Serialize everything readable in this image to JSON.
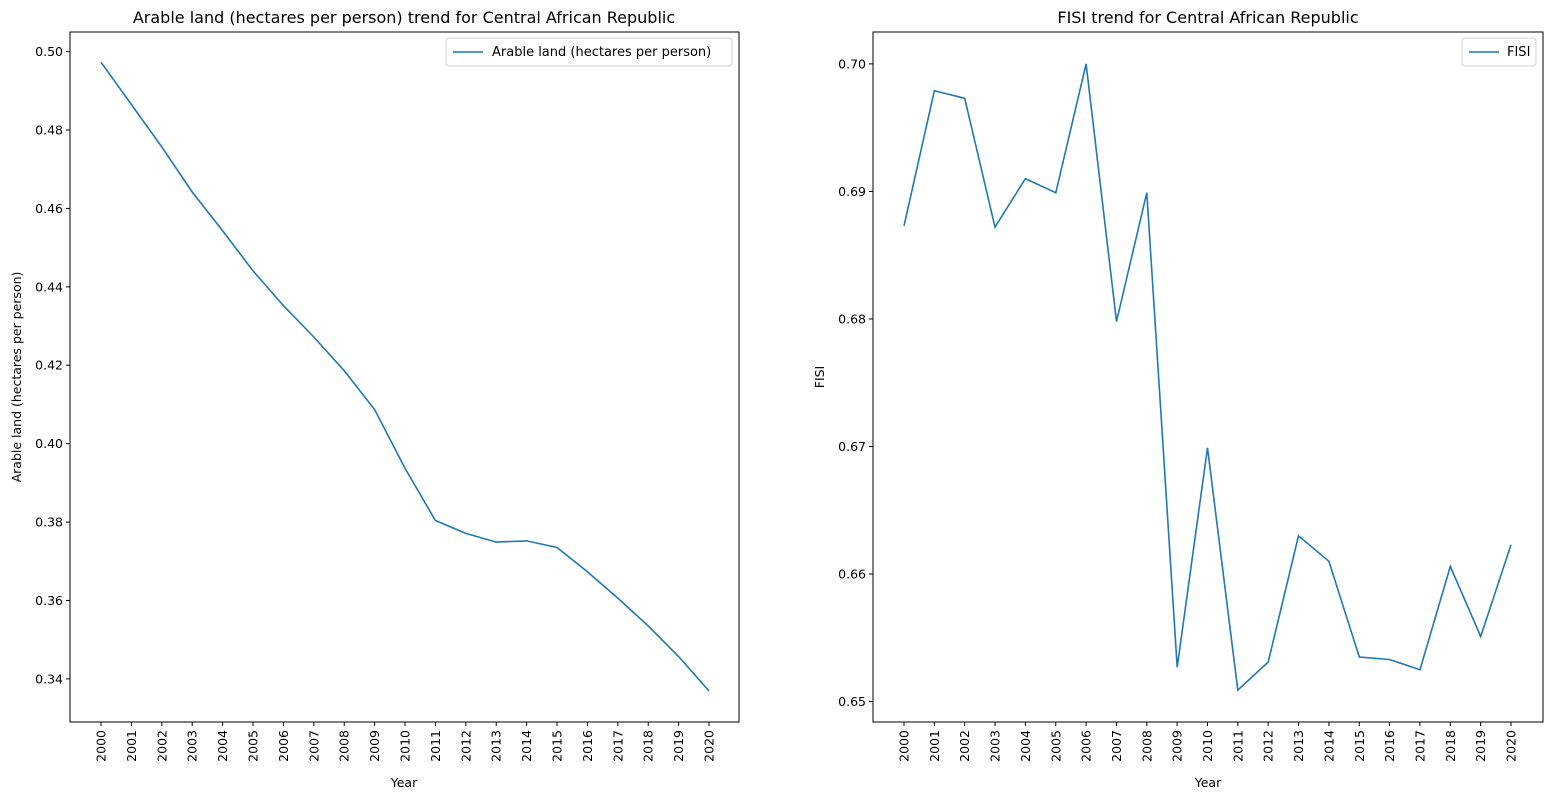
{
  "chart_data": [
    {
      "type": "line",
      "title": "Arable land (hectares per person) trend for Central African Republic",
      "xlabel": "Year",
      "ylabel": "Arable land (hectares per person)",
      "x": [
        "2000",
        "2001",
        "2002",
        "2003",
        "2004",
        "2005",
        "2006",
        "2007",
        "2008",
        "2009",
        "2010",
        "2011",
        "2012",
        "2013",
        "2014",
        "2015",
        "2016",
        "2017",
        "2018",
        "2019",
        "2020"
      ],
      "series": [
        {
          "name": "Arable land (hectares per person)",
          "color": "#1f77b4",
          "values": [
            0.4973,
            0.4865,
            0.4757,
            0.4642,
            0.4543,
            0.4441,
            0.4352,
            0.4272,
            0.4186,
            0.4087,
            0.3937,
            0.3804,
            0.3771,
            0.3749,
            0.3752,
            0.3735,
            0.3673,
            0.3606,
            0.3535,
            0.3457,
            0.3369
          ]
        }
      ],
      "ylim": [
        0.329,
        0.505
      ],
      "yticks": [
        "0.34",
        "0.36",
        "0.38",
        "0.40",
        "0.42",
        "0.44",
        "0.46",
        "0.48",
        "0.50"
      ],
      "legend_position": "top-right",
      "grid": false
    },
    {
      "type": "line",
      "title": "FISI trend for Central African Republic",
      "xlabel": "Year",
      "ylabel": "FISI",
      "x": [
        "2000",
        "2001",
        "2002",
        "2003",
        "2004",
        "2005",
        "2006",
        "2007",
        "2008",
        "2009",
        "2010",
        "2011",
        "2012",
        "2013",
        "2014",
        "2015",
        "2016",
        "2017",
        "2018",
        "2019",
        "2020"
      ],
      "series": [
        {
          "name": "FISI",
          "color": "#1f77b4",
          "values": [
            0.6873,
            0.6979,
            0.6973,
            0.6872,
            0.691,
            0.6899,
            0.7,
            0.6798,
            0.6899,
            0.6527,
            0.6699,
            0.6509,
            0.6531,
            0.663,
            0.661,
            0.6535,
            0.6533,
            0.6525,
            0.6606,
            0.6551,
            0.6623
          ]
        }
      ],
      "ylim": [
        0.6484,
        0.7025
      ],
      "yticks": [
        "0.65",
        "0.66",
        "0.67",
        "0.68",
        "0.69",
        "0.70"
      ],
      "legend_position": "top-right",
      "grid": false
    }
  ]
}
